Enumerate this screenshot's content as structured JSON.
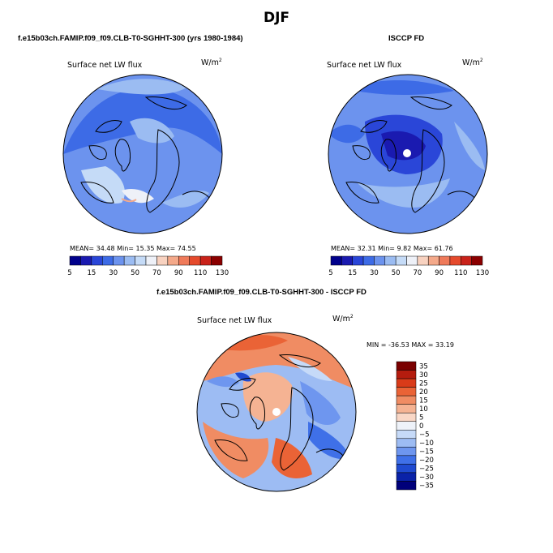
{
  "figure": {
    "title": "DJF"
  },
  "colors": {
    "seq_palette": [
      "#00008b",
      "#1a1ab0",
      "#2a46d8",
      "#3d6be6",
      "#6c93ee",
      "#9bbcf2",
      "#c5dbf7",
      "#eef1f8",
      "#f8d2c0",
      "#f4a98a",
      "#ef7a5a",
      "#e54a2c",
      "#c9221a",
      "#8b0000"
    ],
    "diff_palette": [
      "#00007a",
      "#0a22a8",
      "#1f4ad0",
      "#3f70e8",
      "#6e96ef",
      "#9dbcf3",
      "#c6daf8",
      "#eef2f9",
      "#f9d7c6",
      "#f5b393",
      "#f08c63",
      "#ea6336",
      "#d93b19",
      "#b51c0e",
      "#7a0000"
    ],
    "coast": "#000000",
    "pole_hole": "#ffffff"
  },
  "panels": [
    {
      "header": "f.e15b03ch.FAMIP.f09_f09.CLB-T0-SGHHT-300 (yrs 1980-1984)",
      "variable": "Surface net LW flux",
      "units": "W/m",
      "units_sup": "2",
      "stats_text": "MEAN=   34.48   Min=   15.35   Max=   74.55"
    },
    {
      "header": "ISCCP FD",
      "variable": "Surface net LW flux",
      "units": "W/m",
      "units_sup": "2",
      "stats_text": "MEAN=   32.31   Min=    9.82   Max=   61.76"
    },
    {
      "header": "f.e15b03ch.FAMIP.f09_f09.CLB-T0-SGHHT-300 - ISCCP FD",
      "variable": "Surface net LW flux",
      "units": "W/m",
      "units_sup": "2",
      "stats_text": "MIN = -36.53  MAX =  33.19"
    }
  ],
  "chart_data": [
    {
      "type": "heatmap",
      "title": "Surface net LW flux",
      "colorbar": {
        "orientation": "horizontal",
        "levels": [
          5,
          10,
          15,
          20,
          30,
          40,
          50,
          60,
          70,
          80,
          90,
          100,
          110,
          120,
          130
        ],
        "tick_labels": [
          "5",
          "15",
          "30",
          "50",
          "70",
          "90",
          "110",
          "130"
        ]
      },
      "stats": {
        "mean": 34.48,
        "min": 15.35,
        "max": 74.55
      }
    },
    {
      "type": "heatmap",
      "title": "Surface net LW flux",
      "colorbar": {
        "orientation": "horizontal",
        "levels": [
          5,
          10,
          15,
          20,
          30,
          40,
          50,
          60,
          70,
          80,
          90,
          100,
          110,
          120,
          130
        ],
        "tick_labels": [
          "5",
          "15",
          "30",
          "50",
          "70",
          "90",
          "110",
          "130"
        ]
      },
      "stats": {
        "mean": 32.31,
        "min": 9.82,
        "max": 61.76
      }
    },
    {
      "type": "heatmap",
      "title": "Surface net LW flux",
      "colorbar": {
        "orientation": "vertical",
        "levels": [
          -35,
          -30,
          -25,
          -20,
          -15,
          -10,
          -5,
          0,
          5,
          10,
          15,
          20,
          25,
          30,
          35
        ],
        "tick_labels": [
          "35",
          "30",
          "25",
          "20",
          "15",
          "10",
          "5",
          "0",
          "−5",
          "−10",
          "−15",
          "−20",
          "−25",
          "−30",
          "−35"
        ]
      },
      "stats": {
        "min": -36.53,
        "max": 33.19
      }
    }
  ]
}
